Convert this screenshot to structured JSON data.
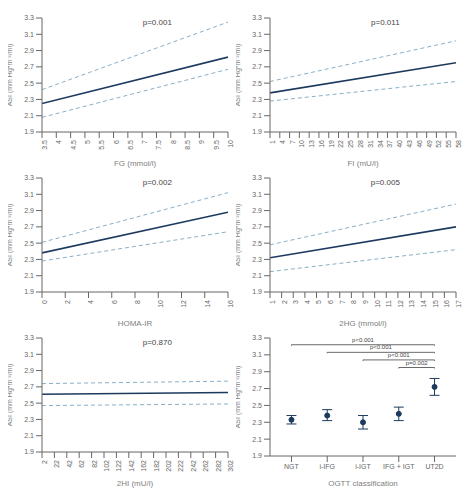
{
  "chart_data": [
    {
      "type": "line",
      "x_label": "FG (mmol/l)",
      "y_label": "ASI (mm Hg*m⁻²/ml)",
      "annotations": [
        "p=0.001"
      ],
      "x": [
        3.5,
        10
      ],
      "series": [
        {
          "color": "#1c3a5e",
          "line_style": "solid",
          "values": [
            2.25,
            2.82
          ]
        },
        {
          "color": "#8aafc8",
          "line_style": "dashed",
          "values": [
            2.42,
            3.25
          ]
        },
        {
          "color": "#8aafc8",
          "line_style": "dashed",
          "values": [
            2.08,
            2.67
          ]
        }
      ],
      "xlim": [
        3.5,
        10
      ],
      "xticks": [
        3.5,
        4,
        4.5,
        5,
        5.5,
        6,
        6.5,
        7,
        7.5,
        8,
        8.5,
        9,
        9.5,
        10
      ],
      "ylim": [
        1.9,
        3.3
      ],
      "yticks": [
        1.9,
        2.1,
        2.3,
        2.5,
        2.7,
        2.9,
        3.1,
        3.3
      ],
      "grid": false
    },
    {
      "type": "line",
      "x_label": "FI (mU/l)",
      "y_label": "ASI (mm Hg*m⁻²/ml)",
      "annotations": [
        "p=0.011"
      ],
      "x": [
        1,
        58
      ],
      "series": [
        {
          "color": "#1c3a5e",
          "line_style": "solid",
          "values": [
            2.38,
            2.75
          ]
        },
        {
          "color": "#8aafc8",
          "line_style": "dashed",
          "values": [
            2.52,
            3.02
          ]
        },
        {
          "color": "#8aafc8",
          "line_style": "dashed",
          "values": [
            2.28,
            2.52
          ]
        }
      ],
      "xlim": [
        1,
        58
      ],
      "xticks": [
        1,
        4,
        7,
        10,
        13,
        16,
        19,
        22,
        25,
        28,
        31,
        34,
        37,
        40,
        43,
        46,
        49,
        52,
        55,
        58
      ],
      "ylim": [
        1.9,
        3.3
      ],
      "yticks": [
        1.9,
        2.1,
        2.3,
        2.5,
        2.7,
        2.9,
        3.1,
        3.3
      ],
      "grid": false
    },
    {
      "type": "line",
      "x_label": "HOMA-IR",
      "y_label": "ASI (mm Hg*m⁻²/ml)",
      "annotations": [
        "p=0.002"
      ],
      "x": [
        0,
        16
      ],
      "series": [
        {
          "color": "#1c3a5e",
          "line_style": "solid",
          "values": [
            2.38,
            2.88
          ]
        },
        {
          "color": "#8aafc8",
          "line_style": "dashed",
          "values": [
            2.51,
            3.12
          ]
        },
        {
          "color": "#8aafc8",
          "line_style": "dashed",
          "values": [
            2.28,
            2.64
          ]
        }
      ],
      "xlim": [
        0,
        16
      ],
      "xticks": [
        0,
        2,
        4,
        6,
        8,
        10,
        12,
        14,
        16
      ],
      "ylim": [
        1.9,
        3.3
      ],
      "yticks": [
        1.9,
        2.1,
        2.3,
        2.5,
        2.7,
        2.9,
        3.1,
        3.3
      ],
      "grid": false
    },
    {
      "type": "line",
      "x_label": "2HG (mmol/l)",
      "y_label": "ASI (mm Hg*m⁻²/ml)",
      "annotations": [
        "p=0.005"
      ],
      "x": [
        1,
        17
      ],
      "series": [
        {
          "color": "#1c3a5e",
          "line_style": "solid",
          "values": [
            2.32,
            2.7
          ]
        },
        {
          "color": "#8aafc8",
          "line_style": "dashed",
          "values": [
            2.48,
            2.98
          ]
        },
        {
          "color": "#8aafc8",
          "line_style": "dashed",
          "values": [
            2.15,
            2.42
          ]
        }
      ],
      "xlim": [
        1,
        17
      ],
      "xticks": [
        1,
        2,
        3,
        4,
        5,
        6,
        7,
        8,
        9,
        10,
        11,
        12,
        13,
        14,
        15,
        16,
        17
      ],
      "ylim": [
        1.9,
        3.3
      ],
      "yticks": [
        1.9,
        2.1,
        2.3,
        2.5,
        2.7,
        2.9,
        3.1,
        3.3
      ],
      "grid": false
    },
    {
      "type": "line",
      "x_label": "2HI (mU/l)",
      "y_label": "ASI (mm Hg*m⁻²/ml)",
      "annotations": [
        "p=0.870"
      ],
      "x": [
        2,
        302
      ],
      "series": [
        {
          "color": "#1c3a5e",
          "line_style": "solid",
          "values": [
            2.61,
            2.63
          ]
        },
        {
          "color": "#8aafc8",
          "line_style": "dashed",
          "values": [
            2.74,
            2.77
          ]
        },
        {
          "color": "#8aafc8",
          "line_style": "dashed",
          "values": [
            2.47,
            2.49
          ]
        }
      ],
      "xlim": [
        2,
        302
      ],
      "xticks": [
        2,
        22,
        42,
        62,
        82,
        102,
        122,
        142,
        162,
        182,
        202,
        222,
        242,
        262,
        282,
        302
      ],
      "ylim": [
        1.9,
        3.3
      ],
      "yticks": [
        1.9,
        2.1,
        2.3,
        2.5,
        2.7,
        2.9,
        3.1,
        3.3
      ],
      "grid": false
    },
    {
      "type": "scatter",
      "x_label": "OGTT classification",
      "y_label": "ASI (mm Hg*m⁻²/ml)",
      "categories": [
        "NGT",
        "i-IFG",
        "i-IGT",
        "IFG + IGT",
        "UT2D"
      ],
      "series": [
        {
          "color": "#1c3a5e",
          "values": [
            2.33,
            2.38,
            2.3,
            2.4,
            2.72
          ],
          "ci_lower": [
            2.28,
            2.32,
            2.22,
            2.32,
            2.62
          ],
          "ci_upper": [
            2.38,
            2.45,
            2.38,
            2.48,
            2.82
          ]
        }
      ],
      "brackets": [
        {
          "from": "NGT",
          "to": "UT2D",
          "y": 3.22,
          "label": "p<0.001"
        },
        {
          "from": "i-IFG",
          "to": "UT2D",
          "y": 3.13,
          "label": "p<0.001"
        },
        {
          "from": "i-IGT",
          "to": "UT2D",
          "y": 3.04,
          "label": "p<0.001"
        },
        {
          "from": "IFG + IGT",
          "to": "UT2D",
          "y": 2.95,
          "label": "p=0.002"
        }
      ],
      "ylim": [
        1.9,
        3.3
      ],
      "yticks": [
        1.9,
        2.1,
        2.3,
        2.5,
        2.7,
        2.9,
        3.1,
        3.3
      ],
      "grid": false
    }
  ]
}
